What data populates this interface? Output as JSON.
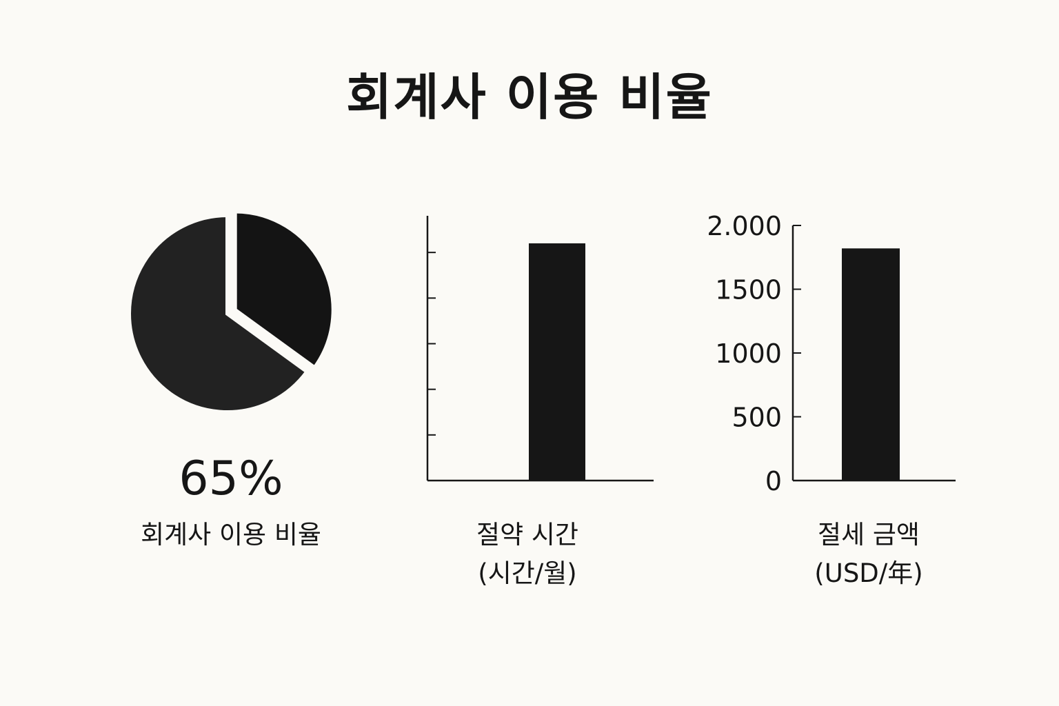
{
  "title": "회계사 이용 비율",
  "colors": {
    "background": "#fbfaf6",
    "ink": "#161616",
    "pie_main": "#222222",
    "pie_accent": "#141414"
  },
  "chart_data": [
    {
      "type": "pie",
      "values": [
        65,
        35
      ],
      "value_label": "65%",
      "label": "회계사 이용 비율"
    },
    {
      "type": "bar",
      "categories": [
        ""
      ],
      "values": [
        5.2
      ],
      "xlabel_line1": "절약 시간",
      "xlabel_line2": "(시간/월)",
      "ylim": [
        0,
        6
      ],
      "y_ticks": [
        1,
        2,
        3,
        4,
        5
      ],
      "y_tick_labels_visible": false
    },
    {
      "type": "bar",
      "categories": [
        ""
      ],
      "values": [
        1820
      ],
      "xlabel_line1": "절세 금액",
      "xlabel_line2": "(USD/年)",
      "ylim": [
        0,
        2000
      ],
      "y_ticks": [
        0,
        500,
        1000,
        1500,
        2000
      ],
      "y_tick_labels": [
        "0",
        "500",
        "1000",
        "1500",
        "2.000"
      ]
    }
  ]
}
